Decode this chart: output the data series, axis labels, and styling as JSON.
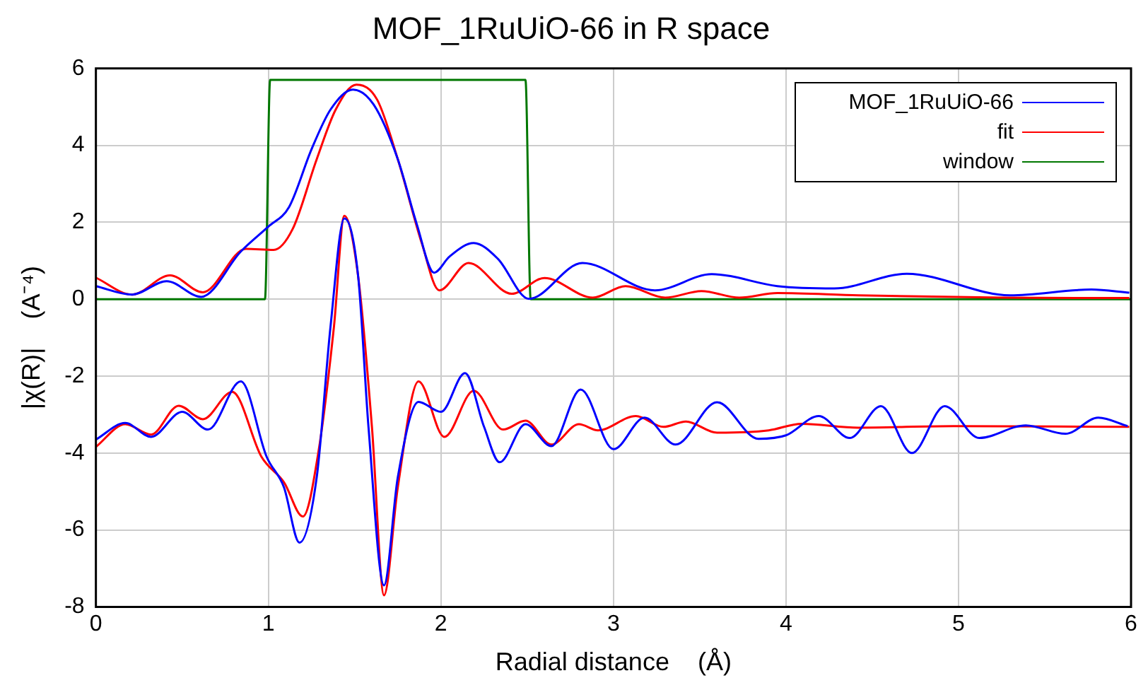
{
  "chart_data": {
    "type": "line",
    "title": "MOF_1RuUiO-66 in R space",
    "xlabel": "Radial distance    (Å)",
    "ylabel": "|χ(R)|    (A⁻⁴)",
    "xlim": [
      0,
      6
    ],
    "xticks": [
      0,
      1,
      2,
      3,
      4,
      5,
      6
    ],
    "ylim": [
      -8,
      6
    ],
    "yticks": [
      -8,
      -6,
      -4,
      -2,
      0,
      2,
      4,
      6
    ],
    "grid": true,
    "legend": "top right",
    "marker": "none",
    "line_style": "solid",
    "series": [
      {
        "name": "MOF_1RuUiO-66",
        "color": "#0000ff",
        "x": [
          0,
          0.21,
          0.41,
          0.61,
          0.84,
          1.0,
          1.12,
          1.25,
          1.36,
          1.49,
          1.61,
          1.75,
          1.86,
          1.96,
          2.05,
          2.19,
          2.33,
          2.51,
          2.82,
          3.24,
          3.57,
          3.95,
          4.28,
          4.7,
          5.3,
          5.77,
          5.99
        ],
        "values": [
          0.34,
          0.12,
          0.47,
          0.06,
          1.24,
          1.89,
          2.4,
          3.9,
          4.93,
          5.45,
          5.06,
          3.64,
          1.95,
          0.69,
          1.11,
          1.46,
          1.05,
          0.01,
          0.94,
          0.23,
          0.65,
          0.34,
          0.28,
          0.66,
          0.1,
          0.25,
          0.17
        ]
      },
      {
        "color": "#0000ff",
        "x": [
          0,
          0.17,
          0.32,
          0.5,
          0.65,
          0.84,
          0.99,
          1.09,
          1.18,
          1.28,
          1.36,
          1.44,
          1.52,
          1.58,
          1.67,
          1.75,
          1.87,
          2.0,
          2.14,
          2.25,
          2.34,
          2.49,
          2.64,
          2.81,
          3.0,
          3.18,
          3.36,
          3.6,
          3.84,
          4.0,
          4.19,
          4.37,
          4.55,
          4.73,
          4.92,
          5.12,
          5.39,
          5.62,
          5.81,
          5.98
        ],
        "values": [
          -3.65,
          -3.22,
          -3.58,
          -2.93,
          -3.39,
          -2.14,
          -4.1,
          -4.89,
          -6.33,
          -4.63,
          -0.71,
          2.1,
          0.6,
          -3.32,
          -7.44,
          -4.63,
          -2.67,
          -2.93,
          -1.92,
          -3.32,
          -4.24,
          -3.25,
          -3.82,
          -2.35,
          -3.9,
          -3.08,
          -3.78,
          -2.68,
          -3.63,
          -3.54,
          -3.04,
          -3.61,
          -2.78,
          -4.0,
          -2.78,
          -3.61,
          -3.28,
          -3.5,
          -3.08,
          -3.3
        ]
      },
      {
        "name": "fit",
        "color": "#ff0000",
        "x": [
          0,
          0.21,
          0.43,
          0.62,
          0.87,
          1.03,
          1.14,
          1.28,
          1.39,
          1.51,
          1.63,
          1.75,
          1.89,
          1.99,
          2.16,
          2.41,
          2.6,
          2.88,
          3.07,
          3.3,
          3.51,
          3.73,
          3.95,
          4.42,
          5.25,
          5.99
        ],
        "values": [
          0.56,
          0.12,
          0.62,
          0.18,
          1.31,
          1.28,
          1.82,
          3.64,
          4.93,
          5.58,
          5.19,
          3.64,
          1.44,
          0.23,
          0.94,
          0.14,
          0.55,
          0.04,
          0.34,
          0.04,
          0.21,
          0.04,
          0.16,
          0.1,
          0.04,
          0.03
        ]
      },
      {
        "color": "#ff0000",
        "x": [
          0,
          0.17,
          0.32,
          0.48,
          0.62,
          0.79,
          0.96,
          1.09,
          1.2,
          1.29,
          1.38,
          1.44,
          1.52,
          1.6,
          1.67,
          1.75,
          1.87,
          2.02,
          2.19,
          2.36,
          2.49,
          2.64,
          2.8,
          2.91,
          3.13,
          3.29,
          3.42,
          3.6,
          3.9,
          4.09,
          4.42,
          4.97,
          5.99
        ],
        "values": [
          -3.84,
          -3.25,
          -3.52,
          -2.77,
          -3.12,
          -2.41,
          -4.1,
          -4.76,
          -5.65,
          -3.97,
          -0.71,
          2.17,
          0.6,
          -3.32,
          -7.7,
          -4.89,
          -2.14,
          -3.58,
          -2.38,
          -3.39,
          -3.16,
          -3.78,
          -3.25,
          -3.41,
          -3.04,
          -3.32,
          -3.18,
          -3.47,
          -3.41,
          -3.24,
          -3.34,
          -3.3,
          -3.32
        ]
      },
      {
        "name": "window",
        "color": "#007700",
        "x": [
          0,
          0.98,
          1.01,
          2.49,
          2.52,
          6
        ],
        "values": [
          0,
          0,
          5.7,
          5.7,
          0,
          0
        ]
      }
    ]
  }
}
